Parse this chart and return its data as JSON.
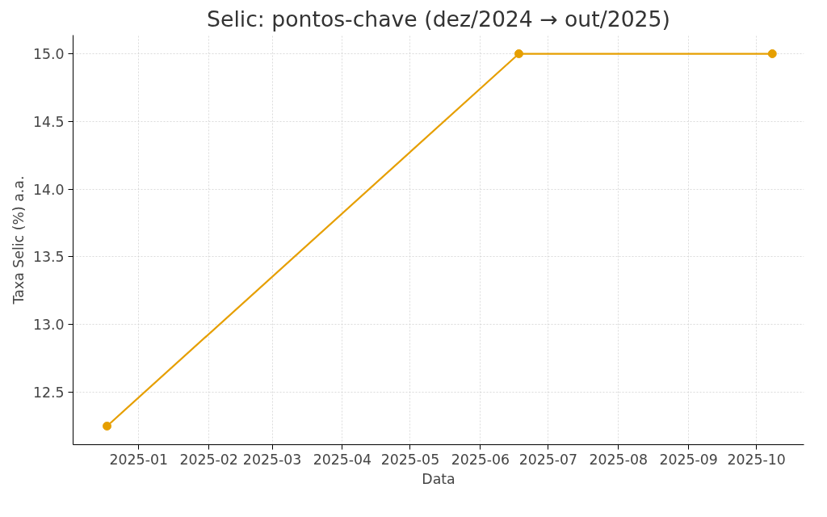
{
  "chart_data": {
    "type": "line",
    "title": "Selic: pontos-chave (dez/2024 → out/2025)",
    "xlabel": "Data",
    "ylabel": "Taxa Selic (%) a.a.",
    "x": [
      "2024-12-18",
      "2025-06-18",
      "2025-10-08"
    ],
    "series": [
      {
        "color": "#e69f00",
        "values": [
          12.25,
          15.0,
          15.0
        ]
      }
    ],
    "xlim": [
      "2024-12-03",
      "2025-10-22"
    ],
    "xticks": [
      "2025-01",
      "2025-02",
      "2025-03",
      "2025-04",
      "2025-05",
      "2025-06",
      "2025-07",
      "2025-08",
      "2025-09",
      "2025-10"
    ],
    "ylim": [
      12.1125,
      15.1375
    ],
    "yticks": [
      12.5,
      {
        "value": 13,
        "label": "13.0"
      },
      13.5,
      {
        "value": 14,
        "label": "14.0"
      },
      14.5,
      {
        "value": 15,
        "label": "15.0"
      }
    ],
    "grid": true,
    "marker": "circle",
    "line_style": "solid"
  }
}
